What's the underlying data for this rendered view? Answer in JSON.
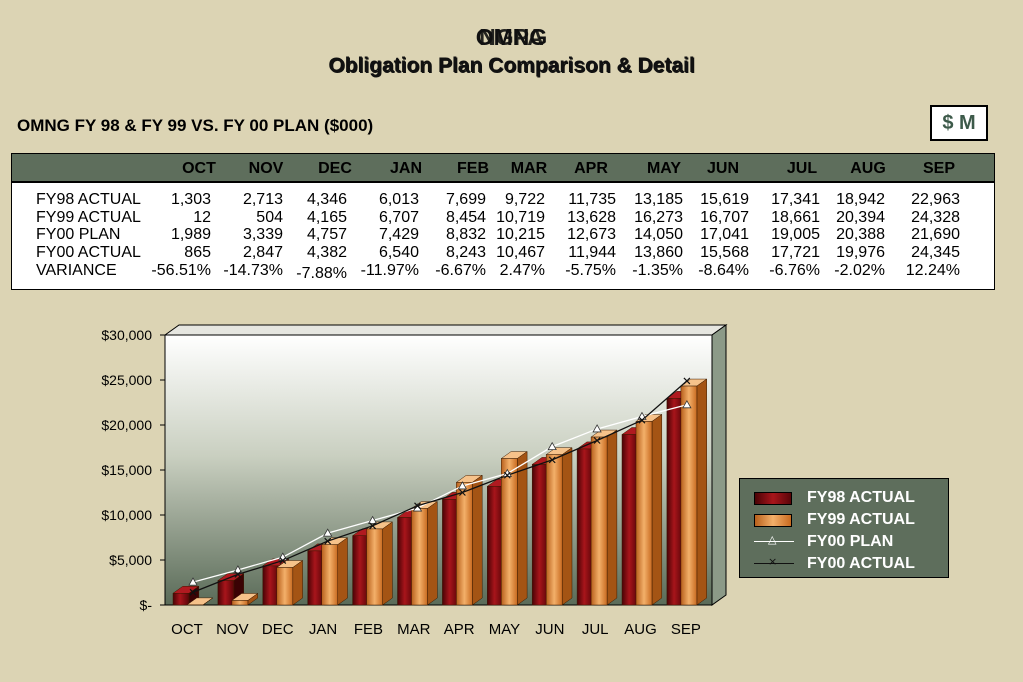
{
  "header": {
    "title_a": "OMNG",
    "title_b": "NGPA",
    "subtitle_a": "Obligation Plan Comparison & Detail",
    "subtitle_b": "Obligation Plan Comparison & Detail"
  },
  "table": {
    "title": "OMNG FY 98 & FY 99 VS. FY 00 PLAN ($000)",
    "unit_label": "$ M",
    "columns": [
      "OCT",
      "NOV",
      "DEC",
      "JAN",
      "FEB",
      "MAR",
      "APR",
      "MAY",
      "JUN",
      "JUL",
      "AUG",
      "SEP"
    ],
    "rows": [
      {
        "label": "FY98 ACTUAL",
        "values": [
          "1,303",
          "2,713",
          "4,346",
          "6,013",
          "7,699",
          "9,722",
          "11,735",
          "13,185",
          "15,619",
          "17,341",
          "18,942",
          "22,963"
        ]
      },
      {
        "label": "FY99 ACTUAL",
        "values": [
          "12",
          "504",
          "4,165",
          "6,707",
          "8,454",
          "10,719",
          "13,628",
          "16,273",
          "16,707",
          "18,661",
          "20,394",
          "24,328"
        ]
      },
      {
        "label": "FY00 PLAN",
        "values": [
          "1,989",
          "3,339",
          "4,757",
          "7,429",
          "8,832",
          "10,215",
          "12,673",
          "14,050",
          "17,041",
          "19,005",
          "20,388",
          "21,690"
        ]
      },
      {
        "label": "FY00 ACTUAL",
        "values": [
          "865",
          "2,847",
          "4,382",
          "6,540",
          "8,243",
          "10,467",
          "11,944",
          "13,860",
          "15,568",
          "17,721",
          "19,976",
          "24,345"
        ]
      },
      {
        "label": "VARIANCE",
        "values": [
          "-56.51%",
          "-14.73%",
          "-7.88%",
          "-11.97%",
          "-6.67%",
          "2.47%",
          "-5.75%",
          "-1.35%",
          "-8.64%",
          "-6.76%",
          "-2.02%",
          "12.24%"
        ]
      }
    ]
  },
  "chart_data": {
    "type": "bar",
    "categories": [
      "OCT",
      "NOV",
      "DEC",
      "JAN",
      "FEB",
      "MAR",
      "APR",
      "MAY",
      "JUN",
      "JUL",
      "AUG",
      "SEP"
    ],
    "series": [
      {
        "name": "FY98 ACTUAL",
        "kind": "bar",
        "color": "#7a0c10",
        "values": [
          1303,
          2713,
          4346,
          6013,
          7699,
          9722,
          11735,
          13185,
          15619,
          17341,
          18942,
          22963
        ]
      },
      {
        "name": "FY99 ACTUAL",
        "kind": "bar",
        "color": "#e0802c",
        "values": [
          12,
          504,
          4165,
          6707,
          8454,
          10719,
          13628,
          16273,
          16707,
          18661,
          20394,
          24328
        ]
      },
      {
        "name": "FY00 PLAN",
        "kind": "line",
        "marker": "triangle",
        "color": "#ffffff",
        "values": [
          1989,
          3339,
          4757,
          7429,
          8832,
          10215,
          12673,
          14050,
          17041,
          19005,
          20388,
          21690
        ]
      },
      {
        "name": "FY00 ACTUAL",
        "kind": "line",
        "marker": "x",
        "color": "#111111",
        "values": [
          865,
          2847,
          4382,
          6540,
          8243,
          10467,
          11944,
          13860,
          15568,
          17721,
          19976,
          24345
        ]
      }
    ],
    "y_ticks": [
      "$-",
      "$5,000",
      "$10,000",
      "$15,000",
      "$20,000",
      "$25,000",
      "$30,000"
    ],
    "ylim": [
      0,
      30000
    ],
    "legend_position": "right",
    "grid": false
  }
}
